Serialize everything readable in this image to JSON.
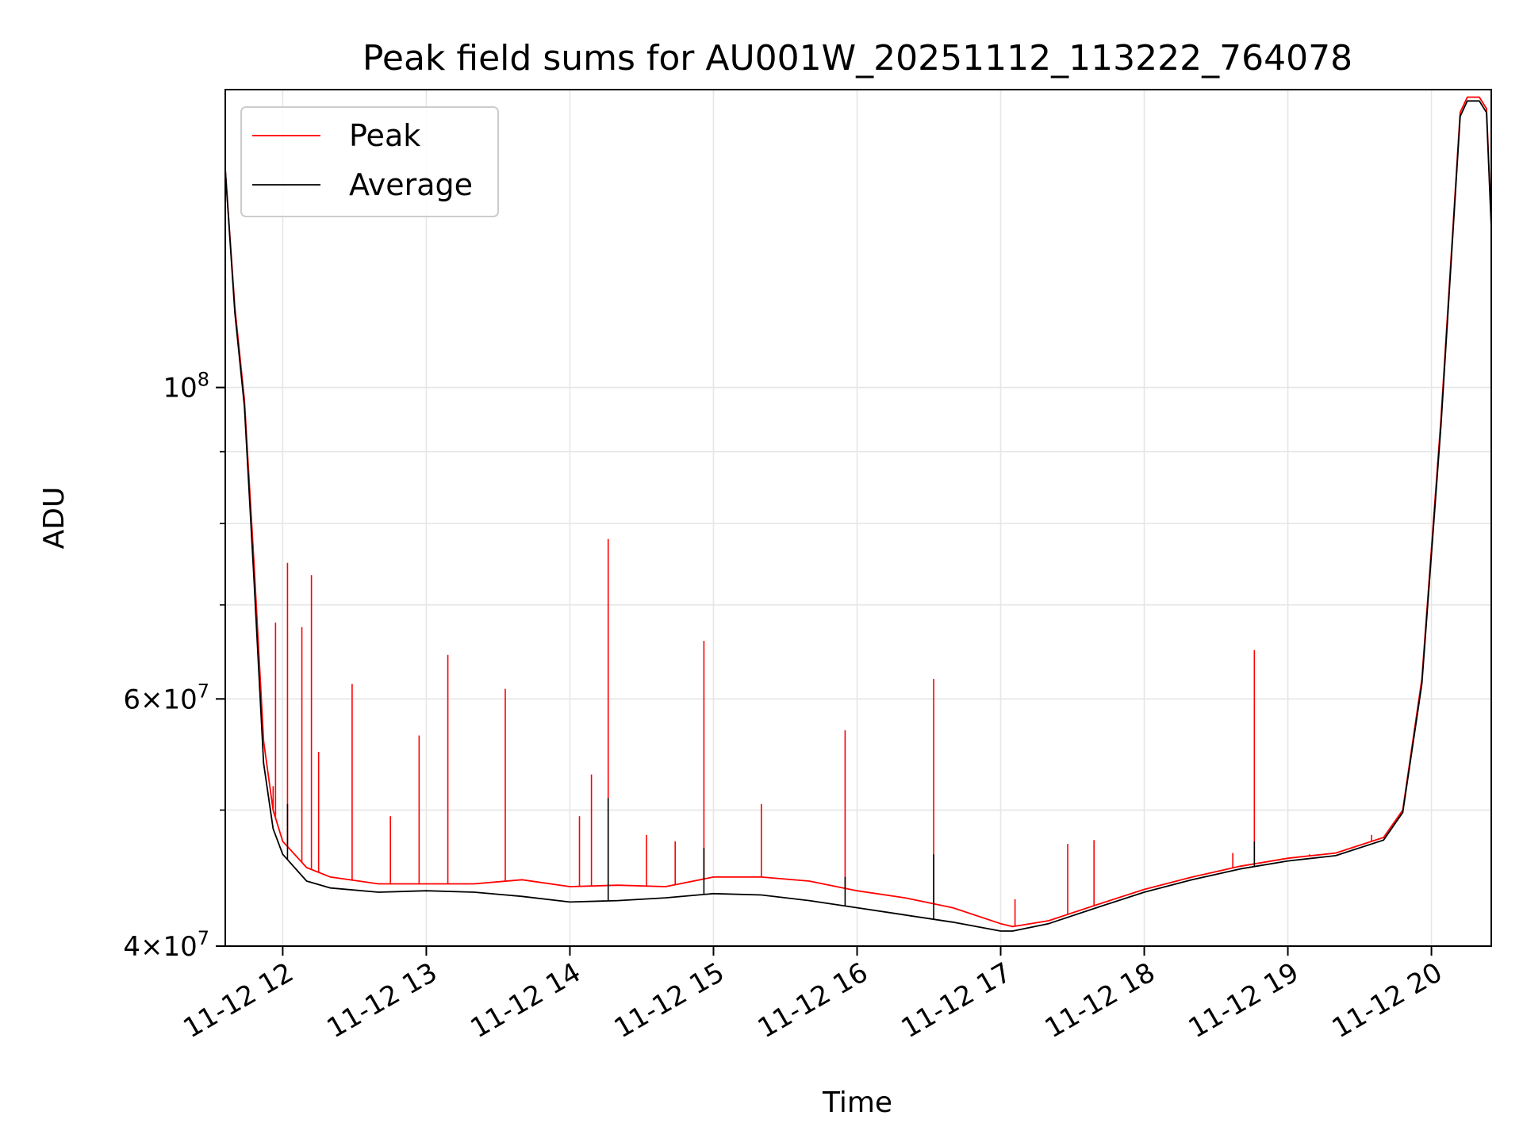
{
  "chart_data": {
    "type": "line",
    "title": "Peak field sums for AU001W_20251112_113222_764078",
    "xlabel": "Time",
    "ylabel": "ADU",
    "yscale": "log",
    "ylim": [
      40000000,
      163000000
    ],
    "xlim": [
      "2025-11-12 11:36",
      "2025-11-12 20:25"
    ],
    "x_ticks": [
      "11-12 12",
      "11-12 13",
      "11-12 14",
      "11-12 15",
      "11-12 16",
      "11-12 17",
      "11-12 18",
      "11-12 19",
      "11-12 20"
    ],
    "y_ticks": [
      {
        "value": 100000000,
        "mant": "",
        "exp": "8"
      },
      {
        "value": 60000000,
        "mant": "6",
        "exp": "7"
      },
      {
        "value": 40000000,
        "mant": "4",
        "exp": "7"
      }
    ],
    "y_minor_ticks": [
      50000000,
      70000000,
      80000000,
      90000000
    ],
    "grid": true,
    "legend": {
      "position": "top-left",
      "entries": [
        "Peak",
        "Average"
      ]
    },
    "colors": {
      "Peak": "#ff0000",
      "Average": "#000000"
    },
    "x": [
      "11:36",
      "11:40",
      "11:44",
      "11:48",
      "11:52",
      "11:56",
      "12:00",
      "12:10",
      "12:20",
      "12:40",
      "13:00",
      "13:20",
      "13:40",
      "14:00",
      "14:20",
      "14:40",
      "15:00",
      "15:20",
      "15:40",
      "16:00",
      "16:20",
      "16:40",
      "17:00",
      "17:05",
      "17:20",
      "17:40",
      "18:00",
      "18:20",
      "18:40",
      "19:00",
      "19:20",
      "19:40",
      "19:48",
      "19:56",
      "20:04",
      "20:12",
      "20:15",
      "20:20",
      "20:23",
      "20:25"
    ],
    "series": [
      {
        "name": "Peak",
        "values": [
          143000000,
          114000000,
          98000000,
          75000000,
          56000000,
          50000000,
          47500000,
          45500000,
          44800000,
          44300000,
          44300000,
          44300000,
          44600000,
          44100000,
          44200000,
          44100000,
          44800000,
          44800000,
          44500000,
          43800000,
          43300000,
          42600000,
          41500000,
          41300000,
          41700000,
          42800000,
          43900000,
          44800000,
          45600000,
          46200000,
          46600000,
          47800000,
          50000000,
          62000000,
          95000000,
          157000000,
          161000000,
          161000000,
          158000000,
          131000000
        ]
      },
      {
        "name": "Average",
        "values": [
          143000000,
          113000000,
          97000000,
          73000000,
          54000000,
          48500000,
          46500000,
          44500000,
          44000000,
          43700000,
          43800000,
          43700000,
          43400000,
          43000000,
          43100000,
          43300000,
          43600000,
          43500000,
          43100000,
          42600000,
          42100000,
          41600000,
          41000000,
          41000000,
          41500000,
          42600000,
          43700000,
          44600000,
          45400000,
          46000000,
          46400000,
          47600000,
          49800000,
          61500000,
          94000000,
          156000000,
          160000000,
          160000000,
          157000000,
          130000000
        ]
      }
    ],
    "spikes": {
      "Peak": [
        [
          "11:56",
          52000000
        ],
        [
          "11:57",
          68000000
        ],
        [
          "12:02",
          75000000
        ],
        [
          "12:08",
          67500000
        ],
        [
          "12:12",
          73500000
        ],
        [
          "12:15",
          55000000
        ],
        [
          "12:29",
          61500000
        ],
        [
          "12:45",
          49500000
        ],
        [
          "12:57",
          56500000
        ],
        [
          "13:09",
          64500000
        ],
        [
          "13:33",
          61000000
        ],
        [
          "14:04",
          49500000
        ],
        [
          "14:09",
          53000000
        ],
        [
          "14:16",
          78000000
        ],
        [
          "14:32",
          48000000
        ],
        [
          "14:44",
          47500000
        ],
        [
          "14:56",
          66000000
        ],
        [
          "15:20",
          50500000
        ],
        [
          "15:55",
          57000000
        ],
        [
          "16:32",
          62000000
        ],
        [
          "17:06",
          43200000
        ],
        [
          "17:28",
          47300000
        ],
        [
          "17:39",
          47600000
        ],
        [
          "18:37",
          46600000
        ],
        [
          "18:46",
          65000000
        ],
        [
          "19:09",
          46500000
        ],
        [
          "19:35",
          48000000
        ]
      ],
      "Average": [
        [
          "12:02",
          50500000
        ],
        [
          "14:16",
          51000000
        ],
        [
          "14:56",
          47000000
        ],
        [
          "15:55",
          44800000
        ],
        [
          "16:32",
          46500000
        ],
        [
          "18:46",
          47500000
        ]
      ]
    }
  }
}
